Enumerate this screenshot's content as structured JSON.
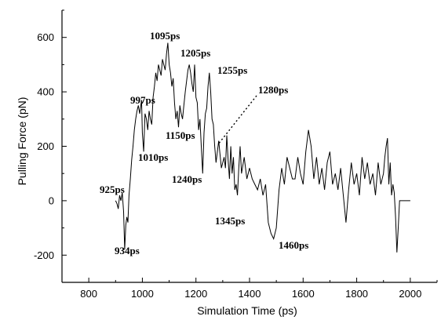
{
  "chart_data": {
    "type": "line",
    "title": "",
    "xlabel": "Simulation Time (ps)",
    "ylabel": "Pulling Force (pN)",
    "xlim": [
      700,
      2100
    ],
    "ylim": [
      -300,
      700
    ],
    "xticks": [
      800,
      1000,
      1200,
      1400,
      1600,
      1800,
      2000
    ],
    "yticks": [
      -200,
      0,
      200,
      400,
      600
    ],
    "grid": false,
    "series": [
      {
        "x": [
          900,
          905,
          910,
          915,
          920,
          925,
          930,
          934,
          938,
          942,
          946,
          950,
          955,
          960,
          965,
          970,
          975,
          980,
          985,
          990,
          997,
          1000,
          1005,
          1010,
          1015,
          1020,
          1025,
          1030,
          1035,
          1040,
          1045,
          1050,
          1055,
          1060,
          1065,
          1070,
          1075,
          1080,
          1085,
          1090,
          1095,
          1100,
          1105,
          1110,
          1115,
          1120,
          1125,
          1130,
          1135,
          1140,
          1145,
          1150,
          1155,
          1160,
          1165,
          1170,
          1175,
          1180,
          1185,
          1190,
          1195,
          1200,
          1205,
          1210,
          1215,
          1220,
          1225,
          1230,
          1235,
          1240,
          1245,
          1250,
          1255,
          1260,
          1265,
          1270,
          1275,
          1280,
          1285,
          1290,
          1295,
          1300,
          1305,
          1310,
          1315,
          1320,
          1325,
          1330,
          1335,
          1340,
          1345,
          1350,
          1355,
          1360,
          1365,
          1370,
          1380,
          1390,
          1400,
          1410,
          1420,
          1430,
          1440,
          1450,
          1460,
          1470,
          1480,
          1490,
          1500,
          1510,
          1520,
          1530,
          1540,
          1550,
          1560,
          1570,
          1580,
          1590,
          1600,
          1610,
          1620,
          1630,
          1640,
          1650,
          1660,
          1670,
          1680,
          1690,
          1700,
          1710,
          1720,
          1730,
          1740,
          1750,
          1760,
          1770,
          1780,
          1790,
          1800,
          1810,
          1820,
          1830,
          1840,
          1850,
          1860,
          1870,
          1880,
          1890,
          1900,
          1905,
          1910,
          1915,
          1920,
          1925,
          1930,
          1935,
          1940,
          1945,
          1950,
          1955,
          1960,
          1970,
          1980,
          1990,
          2000
        ],
        "values": [
          0,
          -10,
          -30,
          20,
          0,
          30,
          -40,
          -180,
          -90,
          -60,
          -80,
          20,
          80,
          150,
          200,
          260,
          300,
          330,
          350,
          320,
          370,
          250,
          180,
          320,
          300,
          260,
          330,
          300,
          280,
          380,
          420,
          470,
          440,
          500,
          480,
          460,
          520,
          500,
          480,
          540,
          580,
          500,
          470,
          420,
          450,
          360,
          300,
          330,
          270,
          350,
          320,
          300,
          350,
          400,
          440,
          480,
          500,
          470,
          430,
          400,
          500,
          380,
          360,
          260,
          300,
          200,
          100,
          250,
          320,
          340,
          420,
          470,
          400,
          300,
          280,
          200,
          140,
          180,
          220,
          170,
          120,
          140,
          160,
          120,
          240,
          150,
          80,
          200,
          100,
          160,
          40,
          60,
          20,
          120,
          200,
          100,
          160,
          80,
          120,
          80,
          60,
          40,
          80,
          20,
          60,
          -80,
          -120,
          -140,
          -100,
          40,
          120,
          60,
          160,
          120,
          80,
          80,
          160,
          100,
          60,
          180,
          260,
          200,
          80,
          160,
          60,
          120,
          40,
          140,
          180,
          60,
          100,
          40,
          120,
          20,
          -80,
          40,
          140,
          60,
          100,
          20,
          160,
          80,
          140,
          60,
          100,
          20,
          140,
          60,
          100,
          160,
          200,
          230,
          60,
          140,
          20,
          60,
          30,
          -60,
          -190,
          -100,
          0,
          0,
          0,
          0,
          0
        ]
      }
    ],
    "annotations": [
      "925ps",
      "934ps",
      "997ps",
      "1010ps",
      "1095ps",
      "1150ps",
      "1205ps",
      "1240ps",
      "1255ps",
      "1280ps",
      "1345ps",
      "1460ps"
    ]
  }
}
